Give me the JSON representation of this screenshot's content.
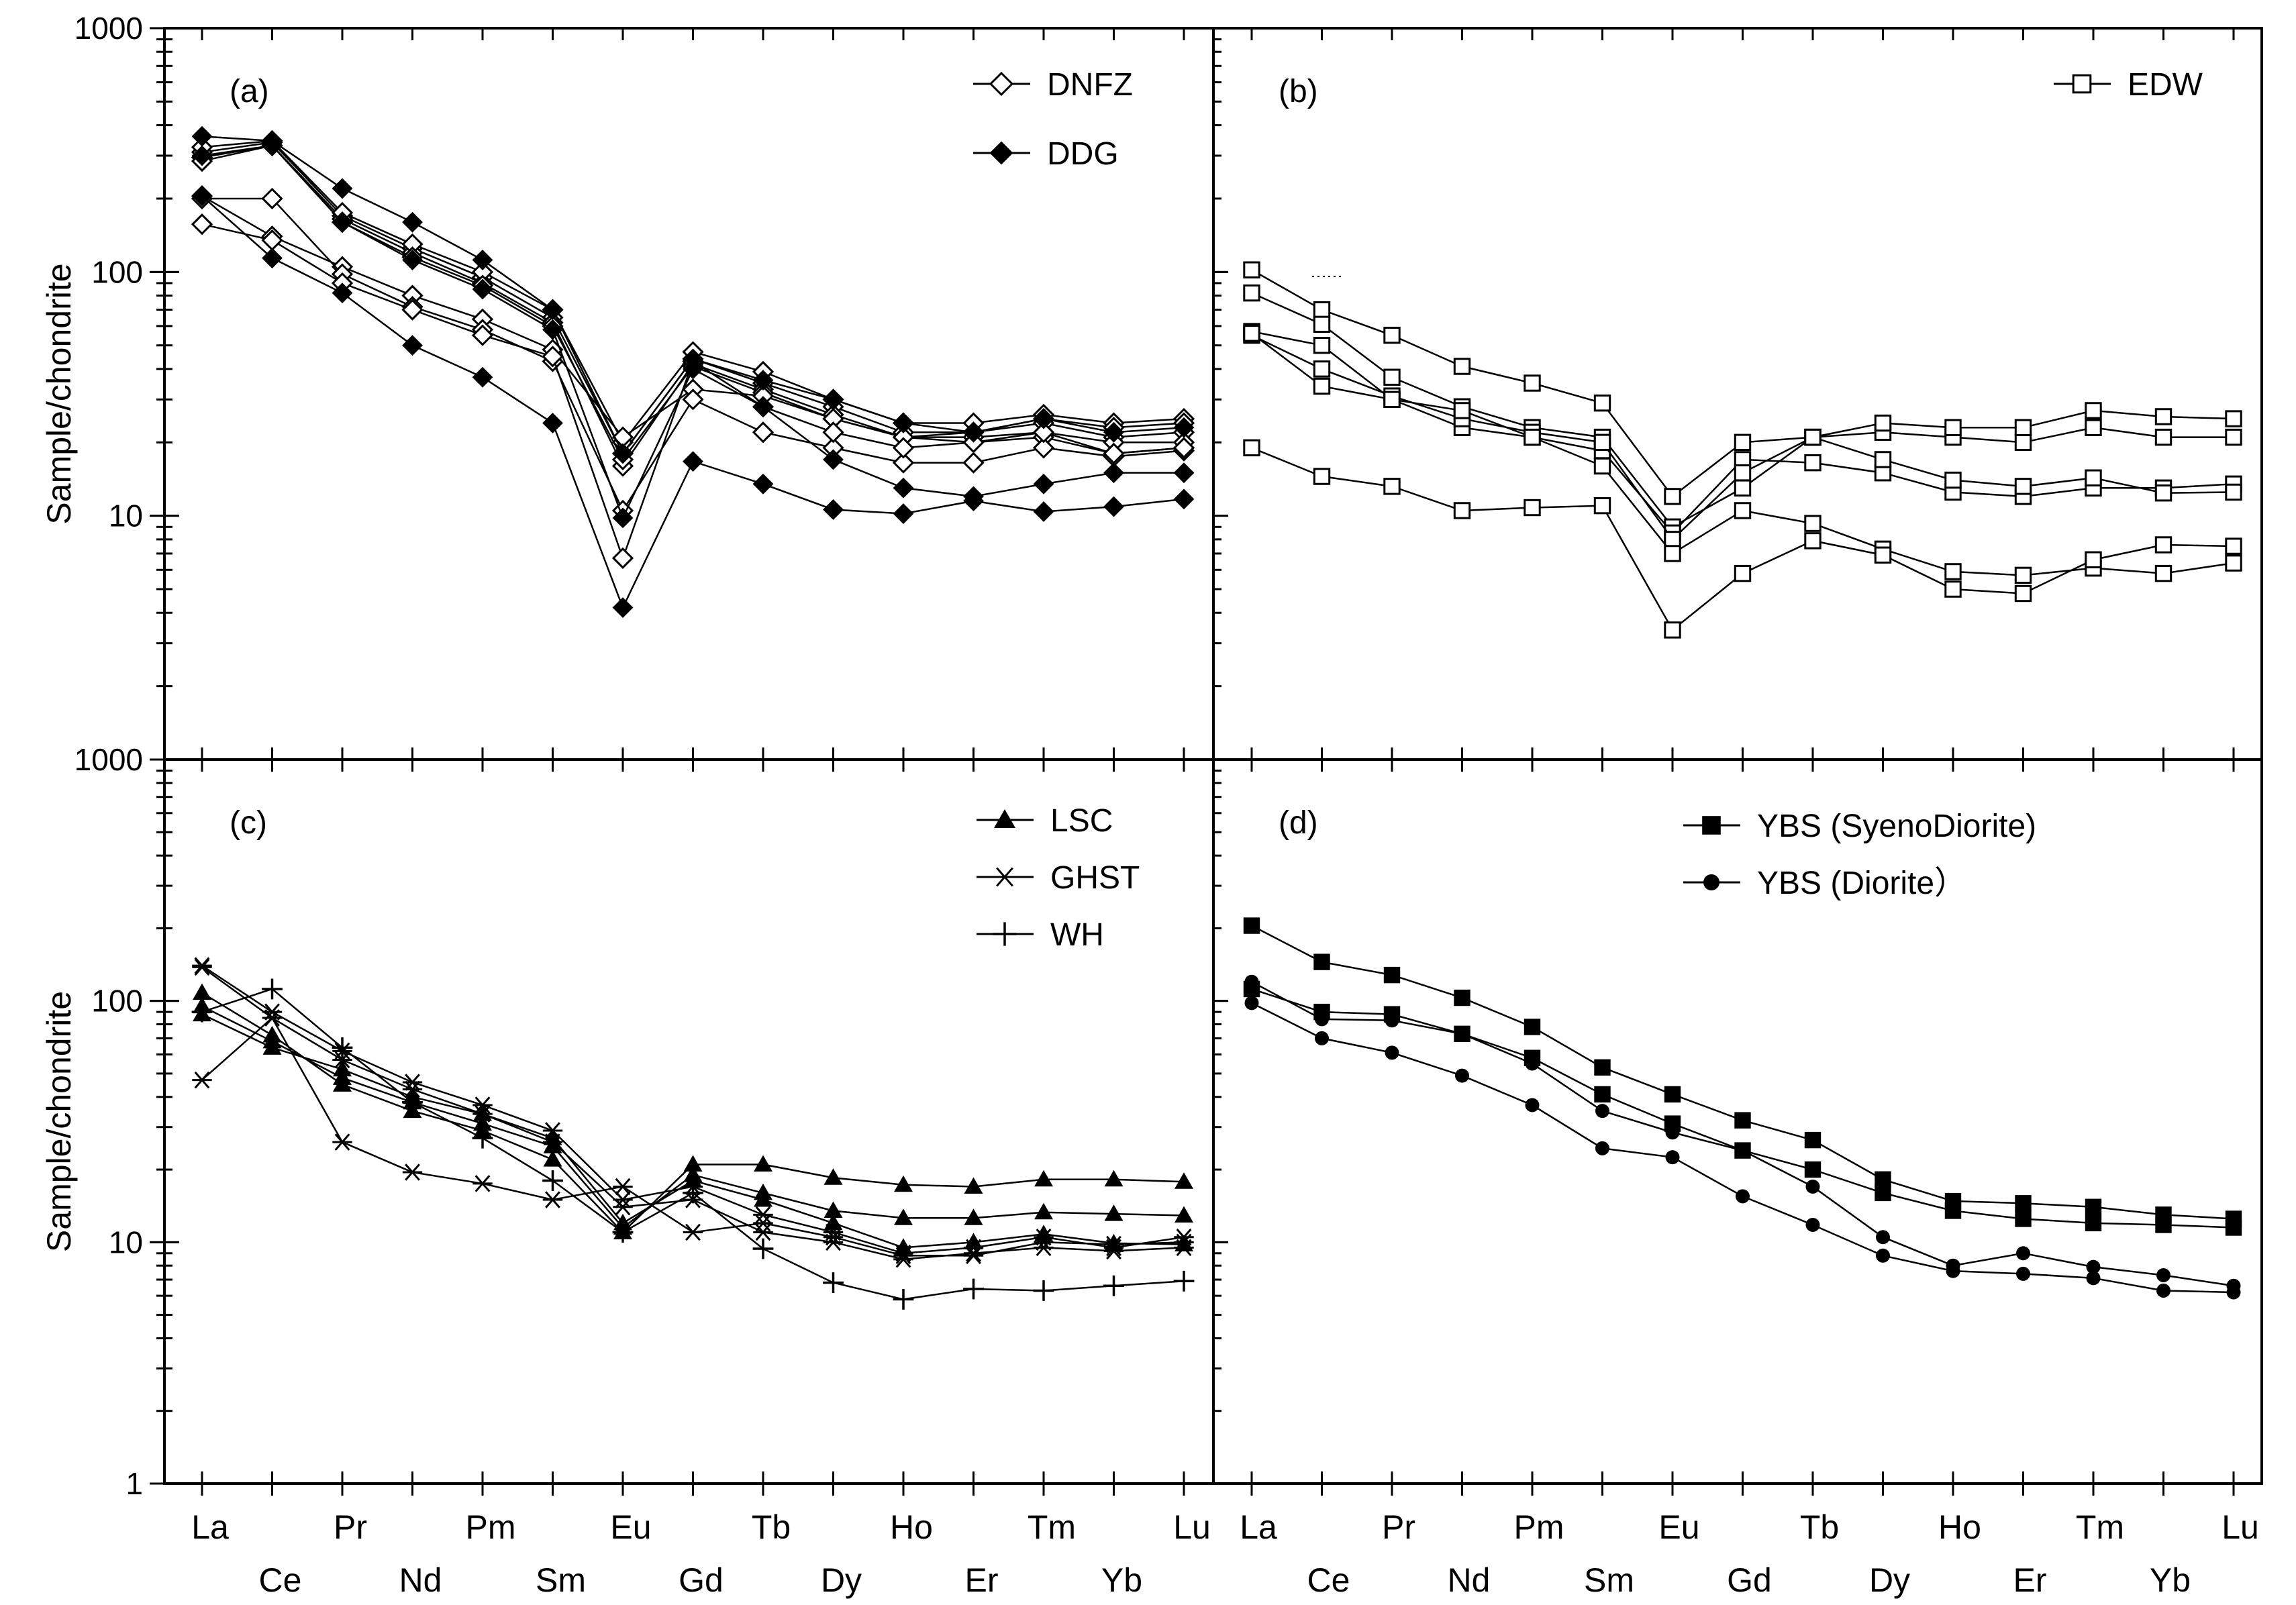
{
  "chart_data": {
    "type": "line",
    "y_scale": "log",
    "ylabel": "Sample/chondrite",
    "x": [
      "La",
      "Ce",
      "Pr",
      "Nd",
      "Pm",
      "Sm",
      "Eu",
      "Gd",
      "Tb",
      "Dy",
      "Ho",
      "Er",
      "Tm",
      "Yb",
      "Lu"
    ],
    "x_labels_top": [
      "La",
      "Pr",
      "Pm",
      "Eu",
      "Tb",
      "Ho",
      "Tm",
      "Lu"
    ],
    "x_labels_bottom": [
      "Ce",
      "Nd",
      "Sm",
      "Gd",
      "Dy",
      "Er",
      "Yb"
    ],
    "panels": [
      {
        "label": "(a)",
        "ylim": [
          1,
          1000
        ],
        "yticks": [
          "1000",
          "100",
          "10"
        ],
        "legend": [
          {
            "name": "DNFZ",
            "marker": "diamond-open"
          },
          {
            "name": "DDG",
            "marker": "diamond-filled"
          }
        ],
        "series": [
          {
            "name": "DNFZ",
            "marker": "diamond-open",
            "values": [
              310,
              340,
              170,
              125,
              95,
              65,
              18,
              44,
              35,
              28,
              22,
              22,
              24,
              21,
              22
            ]
          },
          {
            "name": "DNFZ",
            "marker": "diamond-open",
            "values": [
              295,
              330,
              165,
              120,
              90,
              62,
              16,
              42,
              33,
              26,
              21,
              21,
              22,
              20,
              20
            ]
          },
          {
            "name": "DNFZ",
            "marker": "diamond-open",
            "values": [
              325,
              345,
              175,
              130,
              100,
              70,
              20,
              47,
              39,
              30,
              24,
              24,
              26,
              24,
              25
            ]
          },
          {
            "name": "DNFZ",
            "marker": "diamond-open",
            "values": [
              285,
              330,
              160,
              115,
              88,
              60,
              17,
              41,
              32,
              25,
              21,
              20,
              21,
              18,
              19
            ]
          },
          {
            "name": "DNFZ",
            "marker": "diamond-open",
            "values": [
              205,
              140,
              105,
              80,
              64,
              48,
              21,
              33,
              31,
              25,
              21,
              22,
              25,
              23,
              24
            ]
          },
          {
            "name": "DNFZ",
            "marker": "diamond-open",
            "values": [
              200,
              200,
              98,
              72,
              58,
              43,
              10.5,
              30,
              22,
              19,
              16.5,
              16.5,
              19,
              17.5,
              18.5
            ]
          },
          {
            "name": "DNFZ",
            "marker": "diamond-open",
            "values": [
              157,
              135,
              90,
              70,
              55,
              45,
              6.7,
              43,
              28,
              22,
              19,
              20,
              22,
              18,
              19
            ]
          },
          {
            "name": "DDG",
            "marker": "diamond-filled",
            "values": [
              360,
              345,
              220,
              160,
              112,
              70,
              18,
              44,
              36,
              30,
              24,
              22,
              25,
              22,
              23
            ]
          },
          {
            "name": "DDG",
            "marker": "diamond-filled",
            "values": [
              205,
              114,
              82,
              50,
              37,
              24,
              4.2,
              16.7,
              13.5,
              10.6,
              10.2,
              11.5,
              10.4,
              10.9,
              11.7
            ]
          },
          {
            "name": "DDG",
            "marker": "diamond-filled",
            "values": [
              300,
              330,
              160,
              112,
              85,
              58,
              9.8,
              40,
              28,
              17,
              13,
              12,
              13.5,
              15,
              15
            ]
          }
        ]
      },
      {
        "label": "(b)",
        "ylim": [
          1,
          1000
        ],
        "yticks": [],
        "legend": [
          {
            "name": "EDW",
            "marker": "square-open"
          }
        ],
        "series": [
          {
            "name": "EDW",
            "marker": "square-open",
            "values": [
              102,
              70,
              55,
              41,
              35,
              29,
              12,
              20,
              21,
              22,
              21,
              20,
              23,
              21,
              21
            ]
          },
          {
            "name": "EDW",
            "marker": "square-open",
            "values": [
              82,
              61,
              37,
              28,
              23,
              21,
              9,
              13,
              21,
              24,
              23,
              23,
              27,
              25.5,
              25
            ]
          },
          {
            "name": "EDW",
            "marker": "square-open",
            "values": [
              57,
              50,
              30,
              23,
              21,
              18.5,
              8.5,
              17,
              16.5,
              15,
              12.5,
              12,
              13,
              13,
              13.5
            ]
          },
          {
            "name": "EDW",
            "marker": "square-open",
            "values": [
              55,
              40,
              31,
              25,
              22,
              20,
              8,
              15,
              21,
              17,
              14,
              13.2,
              14.3,
              12.4,
              12.5
            ]
          },
          {
            "name": "EDW",
            "marker": "square-open",
            "values": [
              56,
              34,
              30,
              27,
              21,
              16,
              7,
              10.5,
              9.3,
              7.3,
              5.9,
              5.7,
              6.1,
              5.8,
              6.4
            ]
          },
          {
            "name": "EDW",
            "marker": "square-open",
            "values": [
              19,
              14.5,
              13.2,
              10.5,
              10.8,
              11,
              3.4,
              5.8,
              7.9,
              6.9,
              5,
              4.8,
              6.6,
              7.6,
              7.5
            ]
          }
        ]
      },
      {
        "label": "(c)",
        "ylim": [
          1,
          1000
        ],
        "yticks": [
          "1000",
          "100",
          "10",
          "1"
        ],
        "legend": [
          {
            "name": "LSC",
            "marker": "triangle-filled"
          },
          {
            "name": "GHST",
            "marker": "asterisk"
          },
          {
            "name": "WH",
            "marker": "plus"
          }
        ],
        "series": [
          {
            "name": "LSC",
            "marker": "triangle-filled",
            "values": [
              108,
              72,
              45,
              35,
              29,
              22,
              11,
              21,
              21,
              18.5,
              17.3,
              17,
              18.2,
              18.2,
              17.8
            ]
          },
          {
            "name": "LSC",
            "marker": "triangle-filled",
            "values": [
              95,
              68,
              48,
              38,
              31,
              25,
              11.5,
              19,
              16,
              13.5,
              12.6,
              12.6,
              13.3,
              13.1,
              12.9
            ]
          },
          {
            "name": "LSC",
            "marker": "triangle-filled",
            "values": [
              88,
              64,
              52,
              40,
              34,
              27,
              12,
              18,
              15,
              12,
              9.5,
              10,
              10.8,
              9.9,
              9.8
            ]
          },
          {
            "name": "GHST",
            "marker": "asterisk",
            "values": [
              140,
              90,
              62,
              46,
              37,
              29,
              15,
              17,
              13,
              11,
              9,
              9.5,
              10.5,
              9.5,
              10.5
            ]
          },
          {
            "name": "GHST",
            "marker": "asterisk",
            "values": [
              47,
              85,
              26,
              19.5,
              17.5,
              15,
              17,
              11,
              12,
              10.5,
              8.8,
              8.8,
              10,
              9.8,
              10
            ]
          },
          {
            "name": "GHST",
            "marker": "asterisk",
            "values": [
              138,
              85,
              57,
              43,
              34,
              26,
              14,
              15,
              11,
              10,
              8.5,
              9,
              9.5,
              9.2,
              9.5
            ]
          },
          {
            "name": "WH",
            "marker": "plus",
            "values": [
              90,
              112,
              64,
              38,
              27,
              18,
              11,
              16,
              9.4,
              6.8,
              5.8,
              6.4,
              6.3,
              6.6,
              6.9
            ]
          }
        ]
      },
      {
        "label": "(d)",
        "ylim": [
          1,
          1000
        ],
        "yticks": [],
        "legend": [
          {
            "name": "YBS (SyenoDiorite)",
            "marker": "square-filled"
          },
          {
            "name": "YBS (Diorite）",
            "marker": "circle-filled"
          }
        ],
        "series": [
          {
            "name": "YBS (SyenoDiorite)",
            "marker": "square-filled",
            "values": [
              205,
              145,
              128,
              103,
              78,
              53,
              41,
              32,
              26.5,
              18.2,
              14.8,
              14.5,
              14,
              13,
              12.5
            ]
          },
          {
            "name": "YBS (SyenoDiorite)",
            "marker": "square-filled",
            "values": [
              112,
              90,
              88,
              73,
              58,
              41,
              31,
              24,
              20,
              16,
              13.5,
              12.5,
              12,
              11.8,
              11.5
            ]
          },
          {
            "name": "YBS (Diorite）",
            "marker": "circle-filled",
            "values": [
              120,
              84,
              83,
              73,
              55,
              35,
              28.5,
              24,
              17,
              10.5,
              8,
              9,
              7.9,
              7.3,
              6.6
            ]
          },
          {
            "name": "YBS (Diorite）",
            "marker": "circle-filled",
            "values": [
              98,
              70,
              61,
              49,
              37,
              24.5,
              22.5,
              15.5,
              11.8,
              8.8,
              7.6,
              7.4,
              7.1,
              6.3,
              6.2
            ]
          }
        ]
      }
    ]
  }
}
